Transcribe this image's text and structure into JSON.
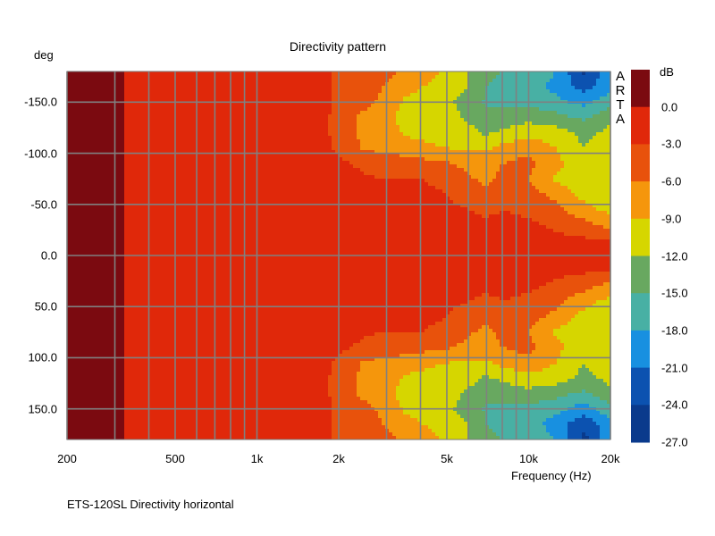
{
  "chart_data": {
    "type": "heatmap",
    "title": "Directivity pattern",
    "xlabel": "Frequency (Hz)",
    "ylabel": "deg",
    "caption": "ETS-120SL  Directivity horizontal",
    "watermark": "ARTA",
    "xscale": "log",
    "xlim": [
      200,
      20000
    ],
    "ylim": [
      -180,
      180
    ],
    "grid": true,
    "x_ticks": [
      {
        "v": 200,
        "label": "200"
      },
      {
        "v": 500,
        "label": "500"
      },
      {
        "v": 1000,
        "label": "1k"
      },
      {
        "v": 2000,
        "label": "2k"
      },
      {
        "v": 5000,
        "label": "5k"
      },
      {
        "v": 10000,
        "label": "10k"
      },
      {
        "v": 20000,
        "label": "20k"
      }
    ],
    "x_grid": [
      200,
      300,
      400,
      500,
      600,
      700,
      800,
      900,
      1000,
      2000,
      3000,
      4000,
      5000,
      6000,
      7000,
      8000,
      9000,
      10000,
      20000
    ],
    "y_ticks": [
      {
        "v": -150,
        "label": "-150.0"
      },
      {
        "v": -100,
        "label": "-100.0"
      },
      {
        "v": -50,
        "label": "-50.0"
      },
      {
        "v": 0,
        "label": "0.0"
      },
      {
        "v": 50,
        "label": "50.0"
      },
      {
        "v": 100,
        "label": "100.0"
      },
      {
        "v": 150,
        "label": "150.0"
      }
    ],
    "y_grid": [
      -150,
      -100,
      -50,
      0,
      50,
      100,
      150
    ],
    "colorbar": {
      "unit": "dB",
      "labels": [
        "0.0",
        "-3.0",
        "-6.0",
        "-9.0",
        "-12.0",
        "-15.0",
        "-18.0",
        "-21.0",
        "-24.0",
        "-27.0"
      ],
      "bands": [
        {
          "min": 0,
          "color": "#7b0a10"
        },
        {
          "min": -3,
          "color": "#e0280a"
        },
        {
          "min": -6,
          "color": "#e8520c"
        },
        {
          "min": -9,
          "color": "#f5960c"
        },
        {
          "min": -12,
          "color": "#d6d600"
        },
        {
          "min": -15,
          "color": "#68a860"
        },
        {
          "min": -18,
          "color": "#48b0a4"
        },
        {
          "min": -21,
          "color": "#1890e0"
        },
        {
          "min": -24,
          "color": "#0c52b0"
        },
        {
          "min": -999,
          "color": "#0a3a8c"
        }
      ]
    },
    "frequencies": [
      200,
      250,
      300,
      350,
      400,
      500,
      630,
      800,
      1000,
      1250,
      1600,
      2000,
      2500,
      3000,
      3500,
      4000,
      5000,
      6000,
      7000,
      8000,
      10000,
      12500,
      16000,
      20000
    ],
    "angles": [
      -180,
      -165,
      -150,
      -135,
      -120,
      -105,
      -90,
      -75,
      -60,
      -45,
      -30,
      -15,
      0,
      15,
      30,
      45,
      60,
      75,
      90,
      105,
      120,
      135,
      150,
      165,
      180
    ],
    "values_db": [
      [
        1.5,
        1.5,
        0.5,
        -0.5,
        -1,
        -1,
        -1,
        -1,
        -1,
        -1,
        -1.2,
        -3.5,
        -4,
        -5,
        -6.5,
        -7.5,
        -9.5,
        -12,
        -14,
        -15,
        -15.5,
        -18,
        -24.5,
        -19
      ],
      [
        1.5,
        1.5,
        0.5,
        -0.5,
        -1,
        -1,
        -1,
        -1,
        -1,
        -1,
        -1.2,
        -3.5,
        -4,
        -6.5,
        -7.5,
        -9,
        -10,
        -12,
        -15,
        -16,
        -16,
        -19,
        -22,
        -19
      ],
      [
        1.5,
        1.5,
        0.5,
        -0.5,
        -1,
        -1,
        -1,
        -1,
        -1,
        -1,
        -1.2,
        -3.5,
        -5,
        -7,
        -9.5,
        -10.5,
        -11.5,
        -13,
        -15.5,
        -16,
        -16,
        -17,
        -19,
        -16
      ],
      [
        1.5,
        1.5,
        0.5,
        -0.5,
        -1,
        -1,
        -1,
        -1,
        -1,
        -1,
        -1.2,
        -4,
        -7,
        -8,
        -10.5,
        -11,
        -11,
        -12.5,
        -14,
        -13.5,
        -13,
        -14,
        -15.5,
        -13
      ],
      [
        1.5,
        1.5,
        0.5,
        -0.5,
        -1,
        -1,
        -1,
        -1,
        -1,
        -1,
        -1.2,
        -4,
        -7,
        -6,
        -9.5,
        -10,
        -10.5,
        -11,
        -12.5,
        -11.5,
        -10,
        -10.5,
        -13,
        -11
      ],
      [
        1.5,
        1.5,
        0.5,
        -0.5,
        -1,
        -1,
        -1,
        -1,
        -1,
        -1,
        -1.2,
        -3.5,
        -6.5,
        -7,
        -7,
        -8,
        -9,
        -9.5,
        -9.5,
        -8,
        -7,
        -9,
        -12,
        -10
      ],
      [
        1.5,
        1.5,
        0.5,
        -0.5,
        -1,
        -1,
        -1,
        -1,
        -1,
        -1,
        -1.2,
        -2.5,
        -3.5,
        -4.5,
        -5,
        -5,
        -5.5,
        -7,
        -7.5,
        -6,
        -5,
        -8,
        -11,
        -11
      ],
      [
        1.5,
        1.5,
        0.5,
        -0.5,
        -1,
        -1,
        -1,
        -1,
        -1,
        -1,
        -1.2,
        -2,
        -2.8,
        -3,
        -3,
        -3,
        -3.5,
        -5.5,
        -7,
        -5,
        -6,
        -9.5,
        -11,
        -11
      ],
      [
        1.5,
        1.5,
        0.5,
        -0.5,
        -1,
        -1,
        -1,
        -1,
        -1,
        -1,
        -1.2,
        -2,
        -2.5,
        -2.5,
        -2.5,
        -2.5,
        -3,
        -4,
        -5,
        -4,
        -4.5,
        -7,
        -10,
        -11
      ],
      [
        1.5,
        1.5,
        0.5,
        -0.5,
        -1,
        -1,
        -1,
        -1,
        -1,
        -1,
        -1.2,
        -1.7,
        -2,
        -2,
        -2,
        -2,
        -2.5,
        -3,
        -3.5,
        -3,
        -3.5,
        -5,
        -8,
        -10
      ],
      [
        1.5,
        1.5,
        0.5,
        -0.5,
        -1,
        -1,
        -1,
        -1,
        -1,
        -1,
        -1.2,
        -1.5,
        -1.5,
        -1.6,
        -1.6,
        -1.7,
        -2,
        -2.5,
        -2.5,
        -2.5,
        -2.5,
        -3.5,
        -5,
        -7
      ],
      [
        1.5,
        1.5,
        0.5,
        -0.5,
        -1,
        -1,
        -1,
        -1,
        -1,
        -1,
        -1.2,
        -1.5,
        -1.5,
        -1.5,
        -1.5,
        -1.5,
        -1.6,
        -2,
        -2,
        -2,
        -2,
        -2.2,
        -2.5,
        -3
      ],
      [
        1.5,
        1.5,
        0.5,
        -0.5,
        -1,
        -1,
        -1,
        -1,
        -1,
        -1,
        -1.2,
        -1.5,
        -1.5,
        -1.5,
        -1.5,
        -1.5,
        -1.5,
        -2,
        -2,
        -2,
        -2,
        -2,
        -2,
        -2
      ],
      [
        1.5,
        1.5,
        0.5,
        -0.5,
        -1,
        -1,
        -1,
        -1,
        -1,
        -1,
        -1.2,
        -1.5,
        -1.5,
        -1.5,
        -1.5,
        -1.5,
        -1.6,
        -2,
        -2,
        -2,
        -2,
        -2.2,
        -2.5,
        -3
      ],
      [
        1.5,
        1.5,
        0.5,
        -0.5,
        -1,
        -1,
        -1,
        -1,
        -1,
        -1,
        -1.2,
        -1.5,
        -1.5,
        -1.6,
        -1.6,
        -1.7,
        -2,
        -2.5,
        -2.5,
        -2.5,
        -2.5,
        -3.5,
        -5,
        -7
      ],
      [
        1.5,
        1.5,
        0.5,
        -0.5,
        -1,
        -1,
        -1,
        -1,
        -1,
        -1,
        -1.2,
        -1.7,
        -2,
        -2,
        -2,
        -2,
        -2.5,
        -3,
        -3.5,
        -3,
        -3.5,
        -5,
        -8,
        -10
      ],
      [
        1.5,
        1.5,
        0.5,
        -0.5,
        -1,
        -1,
        -1,
        -1,
        -1,
        -1,
        -1.2,
        -2,
        -2.5,
        -2.5,
        -2.5,
        -2.5,
        -3,
        -4,
        -5,
        -4,
        -4.5,
        -7,
        -10,
        -11
      ],
      [
        1.5,
        1.5,
        0.5,
        -0.5,
        -1,
        -1,
        -1,
        -1,
        -1,
        -1,
        -1.2,
        -2,
        -2.8,
        -3,
        -3,
        -3,
        -3.5,
        -5.5,
        -7,
        -5,
        -6,
        -9.5,
        -11,
        -11
      ],
      [
        1.5,
        1.5,
        0.5,
        -0.5,
        -1,
        -1,
        -1,
        -1,
        -1,
        -1,
        -1.2,
        -2.5,
        -3.5,
        -4.5,
        -5,
        -5,
        -5.5,
        -7,
        -7.5,
        -6,
        -5,
        -8,
        -11,
        -11
      ],
      [
        1.5,
        1.5,
        0.5,
        -0.5,
        -1,
        -1,
        -1,
        -1,
        -1,
        -1,
        -1.2,
        -3.5,
        -6.5,
        -7,
        -7,
        -8,
        -9,
        -9.5,
        -9.5,
        -8,
        -7,
        -9,
        -12,
        -10
      ],
      [
        1.5,
        1.5,
        0.5,
        -0.5,
        -1,
        -1,
        -1,
        -1,
        -1,
        -1,
        -1.2,
        -4,
        -7,
        -6,
        -9.5,
        -10,
        -10.5,
        -11,
        -12.5,
        -11.5,
        -10,
        -10.5,
        -13,
        -11
      ],
      [
        1.5,
        1.5,
        0.5,
        -0.5,
        -1,
        -1,
        -1,
        -1,
        -1,
        -1,
        -1.2,
        -4,
        -7,
        -8,
        -10.5,
        -11,
        -11,
        -12.5,
        -14,
        -13.5,
        -13,
        -14,
        -15.5,
        -13
      ],
      [
        1.5,
        1.5,
        0.5,
        -0.5,
        -1,
        -1,
        -1,
        -1,
        -1,
        -1,
        -1.2,
        -3.5,
        -5,
        -7,
        -9.5,
        -10.5,
        -11.5,
        -13,
        -15.5,
        -16,
        -16,
        -17,
        -19.5,
        -16
      ],
      [
        1.5,
        1.5,
        0.5,
        -0.5,
        -1,
        -1,
        -1,
        -1,
        -1,
        -1,
        -1.2,
        -3.5,
        -4,
        -6.5,
        -7.5,
        -9,
        -10,
        -12,
        -15,
        -16,
        -16,
        -19.5,
        -23,
        -19
      ],
      [
        1.5,
        1.5,
        0.5,
        -0.5,
        -1,
        -1,
        -1,
        -1,
        -1,
        -1,
        -1.2,
        -3.5,
        -4,
        -5,
        -6.5,
        -7.5,
        -9.5,
        -12,
        -14,
        -15,
        -15.5,
        -18,
        -25,
        -19
      ]
    ]
  }
}
